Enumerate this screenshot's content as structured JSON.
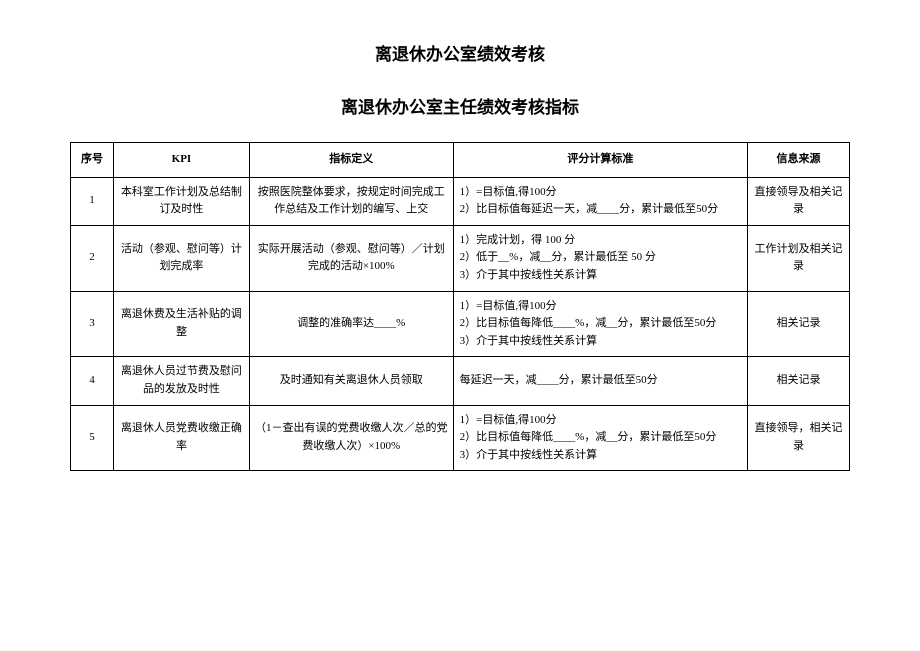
{
  "title": "离退休办公室绩效考核",
  "subtitle": "离退休办公室主任绩效考核指标",
  "headers": {
    "idx": "序号",
    "kpi": "KPI",
    "def": "指标定义",
    "std": "评分计算标准",
    "src": "信息来源"
  },
  "rows": [
    {
      "idx": "1",
      "kpi": "本科室工作计划及总结制订及时性",
      "def": "按照医院整体要求，按规定时间完成工作总结及工作计划的编写、上交",
      "std": "1）=目标值,得100分\n2）比目标值每延迟一天，减____分，累计最低至50分",
      "src": "直接领导及相关记录"
    },
    {
      "idx": "2",
      "kpi": "活动（参观、慰问等）计划完成率",
      "def": "实际开展活动（参观、慰问等）／计划完成的活动×100%",
      "std": "1）完成计划，得 100 分\n2）低于__%，减__分，累计最低至 50 分\n3）介于其中按线性关系计算",
      "src": "工作计划及相关记录"
    },
    {
      "idx": "3",
      "kpi": "离退休费及生活补贴的调整",
      "def": "调整的准确率达____%",
      "std": "1）=目标值,得100分\n2）比目标值每降低____%，减__分，累计最低至50分\n3）介于其中按线性关系计算",
      "src": "相关记录"
    },
    {
      "idx": "4",
      "kpi": "离退休人员过节费及慰问品的发放及时性",
      "def": "及时通知有关离退休人员领取",
      "std": "每延迟一天，减____分，累计最低至50分",
      "src": "相关记录"
    },
    {
      "idx": "5",
      "kpi": "离退休人员党费收缴正确率",
      "def": "（1－查出有误的党费收缴人次／总的党费收缴人次）×100%",
      "std": "1）=目标值,得100分\n2）比目标值每降低____%，减__分，累计最低至50分\n3）介于其中按线性关系计算",
      "src": "直接领导，相关记录"
    }
  ]
}
